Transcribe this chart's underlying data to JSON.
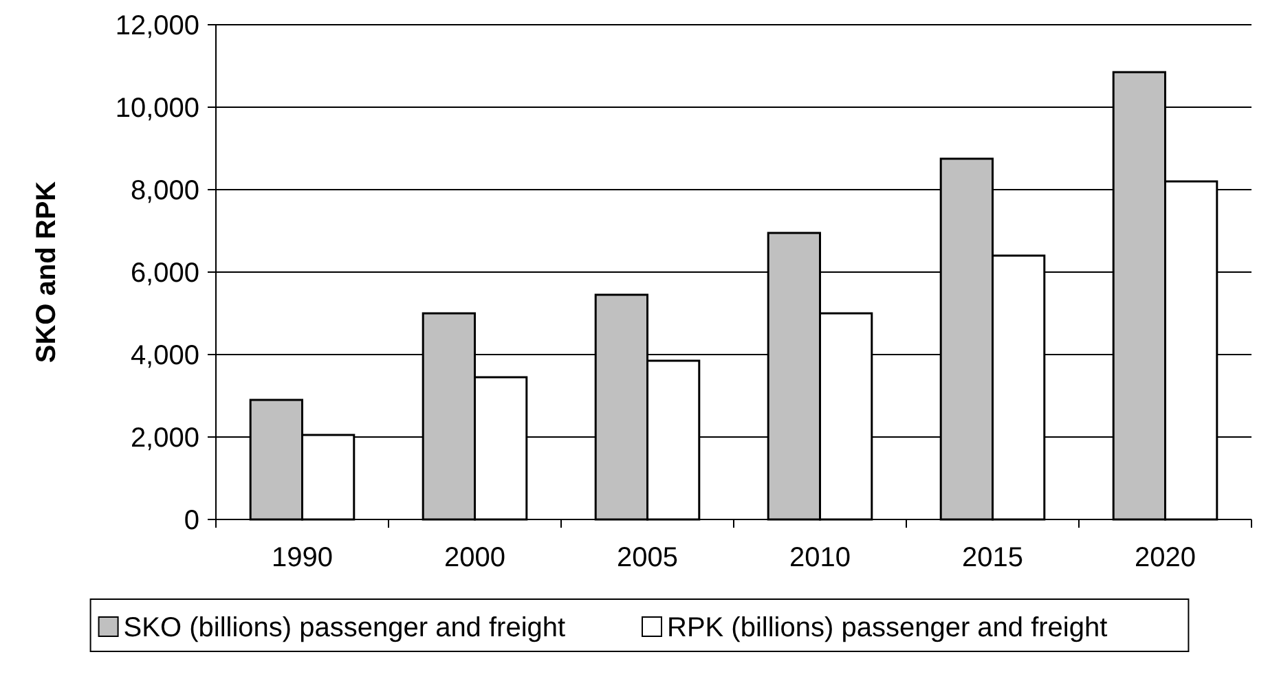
{
  "chart_data": {
    "type": "bar",
    "ylabel": "SKO and RPK",
    "categories": [
      "1990",
      "2000",
      "2005",
      "2010",
      "2015",
      "2020"
    ],
    "series": [
      {
        "name": "SKO (billions) passenger and freight",
        "color": "#c0c0c0",
        "values": [
          2900,
          5000,
          5450,
          6950,
          8750,
          10850
        ]
      },
      {
        "name": "RPK (billions) passenger and freight",
        "color": "#ffffff",
        "values": [
          2050,
          3450,
          3850,
          5000,
          6400,
          8200
        ]
      }
    ],
    "ylim": [
      0,
      12000
    ],
    "yticks": [
      {
        "value": 0,
        "label": "0"
      },
      {
        "value": 2000,
        "label": "2,000"
      },
      {
        "value": 4000,
        "label": "4,000"
      },
      {
        "value": 6000,
        "label": "6,000"
      },
      {
        "value": 8000,
        "label": "8,000"
      },
      {
        "value": 10000,
        "label": "10,000"
      },
      {
        "value": 12000,
        "label": "12,000"
      }
    ],
    "grid": "y",
    "legend": "bottom"
  }
}
